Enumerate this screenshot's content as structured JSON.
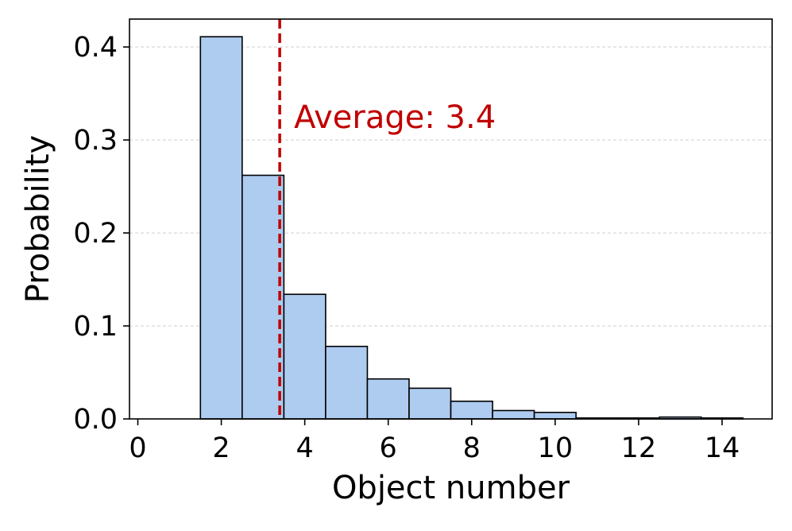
{
  "chart_data": {
    "type": "bar",
    "title": "",
    "xlabel": "Object number",
    "ylabel": "Probability",
    "categories": [
      0,
      1,
      2,
      3,
      4,
      5,
      6,
      7,
      8,
      9,
      10,
      11,
      12,
      13,
      14
    ],
    "values": [
      0.0,
      0.0,
      0.411,
      0.262,
      0.134,
      0.078,
      0.043,
      0.033,
      0.019,
      0.009,
      0.007,
      0.001,
      0.001,
      0.002,
      0.001
    ],
    "xlim": [
      -0.2,
      15.2
    ],
    "ylim": [
      0,
      0.43
    ],
    "xticks": [
      0,
      2,
      4,
      6,
      8,
      10,
      12,
      14
    ],
    "xtick_labels": [
      "0",
      "2",
      "4",
      "6",
      "8",
      "10",
      "12",
      "14"
    ],
    "yticks": [
      0.0,
      0.1,
      0.2,
      0.3,
      0.4
    ],
    "ytick_labels": [
      "0.0",
      "0.1",
      "0.2",
      "0.3",
      "0.4"
    ],
    "grid": "horizontal dashed",
    "bar_color": "#aecbf0",
    "bar_edge_color": "#000000",
    "average": {
      "value": 3.4,
      "label": "Average: 3.4",
      "color": "#c00000",
      "style": "dashed"
    }
  }
}
